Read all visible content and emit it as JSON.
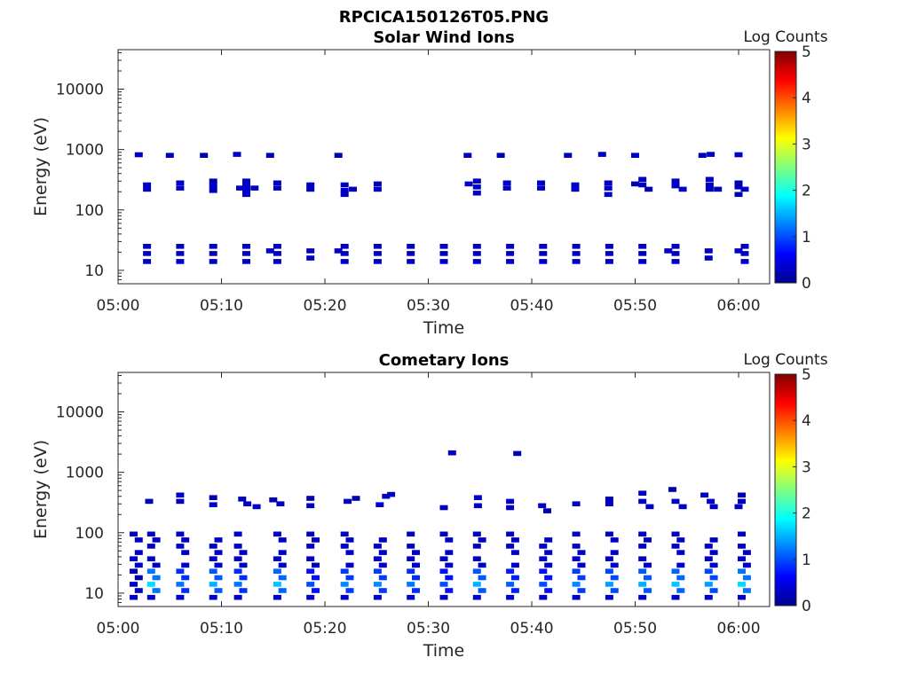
{
  "figure": {
    "title": "RPCICA150126T05.PNG"
  },
  "chart_data": [
    {
      "type": "heatmap",
      "title": "Solar Wind Ions",
      "xlabel": "Time",
      "ylabel": "Energy (eV)",
      "x_ticks": [
        "05:00",
        "05:10",
        "05:20",
        "05:30",
        "05:40",
        "05:50",
        "06:00"
      ],
      "xlim_minutes": [
        0,
        63
      ],
      "y_scale": "log",
      "ylim": [
        6,
        45000
      ],
      "y_ticks": [
        "10",
        "100",
        "1000",
        "10000"
      ],
      "colorbar": {
        "label": "Log Counts",
        "range": [
          0,
          5
        ],
        "ticks": [
          "0",
          "1",
          "2",
          "3",
          "4",
          "5"
        ],
        "colormap": "jet"
      },
      "grid": false,
      "cells": [
        [
          2.0,
          820,
          0.3
        ],
        [
          5.0,
          800,
          0.2
        ],
        [
          8.3,
          800,
          0.2
        ],
        [
          11.5,
          830,
          0.3
        ],
        [
          14.7,
          800,
          0.2
        ],
        [
          21.3,
          800,
          0.2
        ],
        [
          33.8,
          800,
          0.2
        ],
        [
          37.0,
          800,
          0.2
        ],
        [
          43.5,
          800,
          0.2
        ],
        [
          46.8,
          830,
          0.3
        ],
        [
          50.0,
          800,
          0.3
        ],
        [
          56.5,
          800,
          0.2
        ],
        [
          57.3,
          830,
          0.3
        ],
        [
          60.0,
          820,
          0.3
        ],
        [
          2.8,
          260,
          0.3
        ],
        [
          2.8,
          220,
          0.3
        ],
        [
          6.0,
          280,
          0.3
        ],
        [
          6.0,
          230,
          0.3
        ],
        [
          9.2,
          300,
          0.2
        ],
        [
          9.2,
          250,
          0.3
        ],
        [
          9.2,
          210,
          0.3
        ],
        [
          11.8,
          230,
          0.3
        ],
        [
          12.4,
          300,
          0.3
        ],
        [
          12.4,
          250,
          0.3
        ],
        [
          12.4,
          210,
          0.3
        ],
        [
          12.4,
          180,
          0.3
        ],
        [
          13.2,
          230,
          0.3
        ],
        [
          15.4,
          280,
          0.3
        ],
        [
          15.4,
          230,
          0.3
        ],
        [
          18.6,
          260,
          0.3
        ],
        [
          18.6,
          220,
          0.3
        ],
        [
          21.9,
          260,
          0.3
        ],
        [
          21.9,
          210,
          0.3
        ],
        [
          21.9,
          180,
          0.3
        ],
        [
          22.7,
          220,
          0.2
        ],
        [
          25.1,
          270,
          0.2
        ],
        [
          25.1,
          220,
          0.3
        ],
        [
          33.9,
          270,
          0.3
        ],
        [
          34.7,
          300,
          0.3
        ],
        [
          34.7,
          240,
          0.3
        ],
        [
          34.7,
          190,
          0.3
        ],
        [
          37.6,
          280,
          0.3
        ],
        [
          37.6,
          230,
          0.3
        ],
        [
          40.9,
          280,
          0.3
        ],
        [
          40.9,
          230,
          0.3
        ],
        [
          44.2,
          260,
          0.3
        ],
        [
          44.2,
          220,
          0.3
        ],
        [
          47.4,
          280,
          0.3
        ],
        [
          47.4,
          230,
          0.3
        ],
        [
          47.4,
          180,
          0.3
        ],
        [
          50.0,
          270,
          0.2
        ],
        [
          50.7,
          320,
          0.3
        ],
        [
          50.7,
          260,
          0.3
        ],
        [
          51.3,
          220,
          0.2
        ],
        [
          53.9,
          300,
          0.3
        ],
        [
          53.9,
          250,
          0.3
        ],
        [
          54.6,
          220,
          0.3
        ],
        [
          57.2,
          320,
          0.3
        ],
        [
          57.2,
          260,
          0.3
        ],
        [
          57.2,
          220,
          0.3
        ],
        [
          58.0,
          220,
          0.2
        ],
        [
          60.0,
          280,
          0.2
        ],
        [
          60.0,
          240,
          0.2
        ],
        [
          60.0,
          180,
          0.2
        ],
        [
          60.6,
          220,
          0.3
        ],
        [
          2.8,
          25,
          0.3
        ],
        [
          2.8,
          19,
          0.3
        ],
        [
          2.8,
          14,
          0.3
        ],
        [
          6.0,
          25,
          0.3
        ],
        [
          6.0,
          19,
          0.3
        ],
        [
          6.0,
          14,
          0.3
        ],
        [
          9.2,
          25,
          0.3
        ],
        [
          9.2,
          19,
          0.3
        ],
        [
          9.2,
          14,
          0.3
        ],
        [
          12.4,
          25,
          0.3
        ],
        [
          12.4,
          19,
          0.3
        ],
        [
          12.4,
          14,
          0.3
        ],
        [
          14.7,
          21,
          0.3
        ],
        [
          15.4,
          25,
          0.3
        ],
        [
          15.4,
          19,
          0.3
        ],
        [
          15.4,
          14,
          0.3
        ],
        [
          18.6,
          21,
          0.3
        ],
        [
          18.6,
          16,
          0.3
        ],
        [
          21.3,
          21,
          0.3
        ],
        [
          21.9,
          25,
          0.3
        ],
        [
          21.9,
          19,
          0.3
        ],
        [
          21.9,
          14,
          0.3
        ],
        [
          25.1,
          25,
          0.3
        ],
        [
          25.1,
          19,
          0.3
        ],
        [
          25.1,
          14,
          0.3
        ],
        [
          28.3,
          25,
          0.3
        ],
        [
          28.3,
          19,
          0.3
        ],
        [
          28.3,
          14,
          0.3
        ],
        [
          31.5,
          25,
          0.3
        ],
        [
          31.5,
          19,
          0.3
        ],
        [
          31.5,
          14,
          0.3
        ],
        [
          34.7,
          25,
          0.3
        ],
        [
          34.7,
          19,
          0.3
        ],
        [
          34.7,
          14,
          0.3
        ],
        [
          37.9,
          25,
          0.3
        ],
        [
          37.9,
          19,
          0.3
        ],
        [
          37.9,
          14,
          0.3
        ],
        [
          41.1,
          25,
          0.3
        ],
        [
          41.1,
          19,
          0.3
        ],
        [
          41.1,
          14,
          0.3
        ],
        [
          44.3,
          25,
          0.3
        ],
        [
          44.3,
          19,
          0.3
        ],
        [
          44.3,
          14,
          0.3
        ],
        [
          47.5,
          25,
          0.3
        ],
        [
          47.5,
          19,
          0.3
        ],
        [
          47.5,
          14,
          0.3
        ],
        [
          50.7,
          25,
          0.3
        ],
        [
          50.7,
          19,
          0.3
        ],
        [
          50.7,
          14,
          0.3
        ],
        [
          53.2,
          21,
          0.3
        ],
        [
          53.9,
          25,
          0.3
        ],
        [
          53.9,
          19,
          0.3
        ],
        [
          53.9,
          14,
          0.3
        ],
        [
          57.1,
          21,
          0.3
        ],
        [
          57.1,
          16,
          0.3
        ],
        [
          60.0,
          21,
          0.3
        ],
        [
          60.6,
          25,
          0.3
        ],
        [
          60.6,
          19,
          0.3
        ],
        [
          60.6,
          14,
          0.3
        ]
      ]
    },
    {
      "type": "heatmap",
      "title": "Cometary Ions",
      "xlabel": "Time",
      "ylabel": "Energy (eV)",
      "x_ticks": [
        "05:00",
        "05:10",
        "05:20",
        "05:30",
        "05:40",
        "05:50",
        "06:00"
      ],
      "xlim_minutes": [
        0,
        63
      ],
      "y_scale": "log",
      "ylim": [
        6,
        45000
      ],
      "y_ticks": [
        "10",
        "100",
        "1000",
        "10000"
      ],
      "colorbar": {
        "label": "Log Counts",
        "range": [
          0,
          5
        ],
        "ticks": [
          "0",
          "1",
          "2",
          "3",
          "4",
          "5"
        ],
        "colormap": "jet"
      },
      "grid": false,
      "column_times": [
        1.5,
        3.2,
        6.0,
        9.2,
        11.6,
        15.4,
        18.6,
        21.9,
        25.1,
        28.3,
        31.5,
        34.7,
        37.9,
        41.1,
        44.3,
        47.5,
        50.7,
        53.9,
        57.1,
        60.3
      ],
      "column_peaks": [
        0.3,
        1.7,
        1.2,
        1.5,
        1.2,
        1.6,
        1.0,
        1.3,
        1.3,
        1.2,
        1.0,
        1.5,
        1.1,
        1.0,
        1.3,
        1.4,
        1.5,
        1.6,
        1.4,
        1.7
      ],
      "sparse_cells": [
        [
          32.3,
          2100,
          0.3
        ],
        [
          38.6,
          2050,
          0.2
        ],
        [
          3.0,
          330,
          0.2
        ],
        [
          6.0,
          420,
          0.3
        ],
        [
          6.0,
          330,
          0.3
        ],
        [
          9.2,
          380,
          0.2
        ],
        [
          9.2,
          290,
          0.3
        ],
        [
          12.0,
          360,
          0.2
        ],
        [
          12.5,
          300,
          0.3
        ],
        [
          13.4,
          270,
          0.3
        ],
        [
          15.0,
          350,
          0.2
        ],
        [
          15.7,
          300,
          0.3
        ],
        [
          18.6,
          370,
          0.2
        ],
        [
          18.6,
          280,
          0.3
        ],
        [
          22.2,
          330,
          0.3
        ],
        [
          23.0,
          370,
          0.2
        ],
        [
          25.9,
          400,
          0.3
        ],
        [
          26.4,
          430,
          0.3
        ],
        [
          25.3,
          290,
          0.3
        ],
        [
          31.5,
          260,
          0.2
        ],
        [
          34.8,
          380,
          0.3
        ],
        [
          34.8,
          280,
          0.3
        ],
        [
          37.9,
          330,
          0.3
        ],
        [
          37.9,
          260,
          0.3
        ],
        [
          41.0,
          280,
          0.3
        ],
        [
          41.5,
          230,
          0.2
        ],
        [
          44.3,
          300,
          0.3
        ],
        [
          47.5,
          300,
          0.3
        ],
        [
          47.5,
          360,
          0.2
        ],
        [
          50.7,
          450,
          0.3
        ],
        [
          50.7,
          330,
          0.3
        ],
        [
          51.4,
          270,
          0.3
        ],
        [
          53.6,
          520,
          0.2
        ],
        [
          53.9,
          330,
          0.3
        ],
        [
          54.6,
          270,
          0.3
        ],
        [
          56.7,
          420,
          0.3
        ],
        [
          57.3,
          330,
          0.3
        ],
        [
          57.6,
          270,
          0.3
        ],
        [
          60.3,
          420,
          0.2
        ],
        [
          60.3,
          330,
          0.3
        ],
        [
          60.0,
          270,
          0.3
        ]
      ]
    }
  ]
}
